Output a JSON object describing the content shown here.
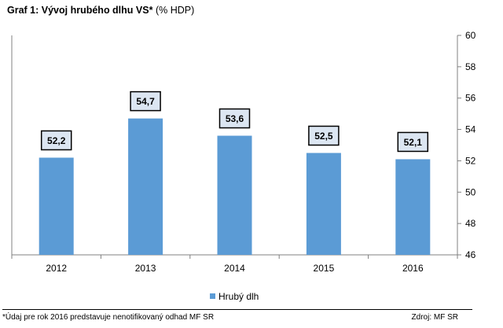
{
  "header": {
    "title_bold": "Graf 1: Vývoj hrubého dlhu VS*",
    "title_unit": "(% HDP)"
  },
  "footer": {
    "note": "*Údaj pre rok 2016 predstavuje nenotifikovaný odhad MF SR",
    "source": "Zdroj: MF SR"
  },
  "colors": {
    "bar": "#5B9BD5",
    "label_box_fill": "#DCE6F2",
    "axis": "#808080"
  },
  "chart_data": {
    "type": "bar",
    "title": "Graf 1: Vývoj hrubého dlhu VS* (% HDP)",
    "categories": [
      "2012",
      "2013",
      "2014",
      "2015",
      "2016"
    ],
    "series": [
      {
        "name": "Hrubý dlh",
        "values": [
          52.2,
          54.7,
          53.6,
          52.5,
          52.1
        ],
        "labels": [
          "52,2",
          "54,7",
          "53,6",
          "52,5",
          "52,1"
        ]
      }
    ],
    "ylim": [
      46,
      60
    ],
    "yticks": [
      "46",
      "48",
      "50",
      "52",
      "54",
      "56",
      "58",
      "60"
    ],
    "y_axis_side": "right",
    "grid": false,
    "legend_position": "bottom-center"
  }
}
